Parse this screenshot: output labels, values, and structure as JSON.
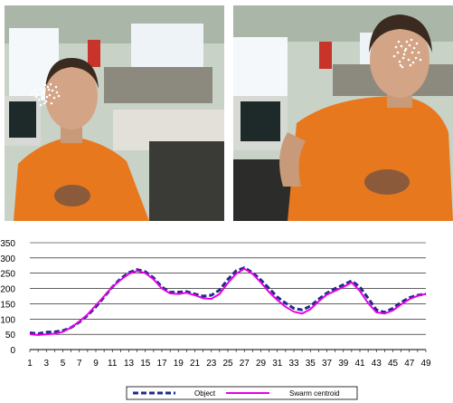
{
  "photos": [
    {
      "description_icon": "webcam-frame-face-tracking",
      "subject": "person-orange-shirt"
    },
    {
      "description_icon": "webcam-frame-face-tracking",
      "subject": "person-orange-shirt"
    }
  ],
  "colors": {
    "object_series": "#1f2a8a",
    "swarm_series": "#e600e6",
    "shirt": "#e8781e",
    "wall": "#cdd6cc",
    "gridline": "#000000"
  },
  "chart_data": {
    "type": "line",
    "x": [
      1,
      2,
      3,
      4,
      5,
      6,
      7,
      8,
      9,
      10,
      11,
      12,
      13,
      14,
      15,
      16,
      17,
      18,
      19,
      20,
      21,
      22,
      23,
      24,
      25,
      26,
      27,
      28,
      29,
      30,
      31,
      32,
      33,
      34,
      35,
      36,
      37,
      38,
      39,
      40,
      41,
      42,
      43,
      44,
      45,
      46,
      47,
      48,
      49
    ],
    "x_tick_labels": [
      "1",
      "3",
      "5",
      "7",
      "9",
      "11",
      "13",
      "15",
      "17",
      "19",
      "21",
      "23",
      "25",
      "27",
      "29",
      "31",
      "33",
      "35",
      "37",
      "39",
      "41",
      "43",
      "45",
      "47",
      "49"
    ],
    "y_tick_labels": [
      "0",
      "50",
      "100",
      "150",
      "200",
      "250",
      "300",
      "350"
    ],
    "ylim": [
      0,
      350
    ],
    "grid": true,
    "legend_position": "bottom",
    "series": [
      {
        "name": "Object",
        "style": "dashed",
        "values": [
          55,
          52,
          57,
          58,
          62,
          72,
          90,
          112,
          140,
          172,
          205,
          232,
          252,
          262,
          255,
          235,
          205,
          188,
          188,
          190,
          182,
          175,
          178,
          195,
          230,
          258,
          268,
          252,
          228,
          200,
          172,
          152,
          135,
          130,
          142,
          165,
          185,
          200,
          212,
          225,
          205,
          168,
          130,
          122,
          135,
          155,
          170,
          178,
          182
        ]
      },
      {
        "name": "Swarm centroid",
        "style": "solid",
        "values": [
          50,
          48,
          50,
          52,
          58,
          72,
          92,
          115,
          145,
          175,
          205,
          228,
          248,
          258,
          250,
          230,
          200,
          184,
          182,
          186,
          178,
          168,
          166,
          182,
          218,
          248,
          265,
          248,
          220,
          188,
          162,
          140,
          124,
          118,
          132,
          158,
          180,
          192,
          205,
          220,
          192,
          152,
          122,
          118,
          128,
          148,
          165,
          176,
          182
        ]
      }
    ]
  }
}
